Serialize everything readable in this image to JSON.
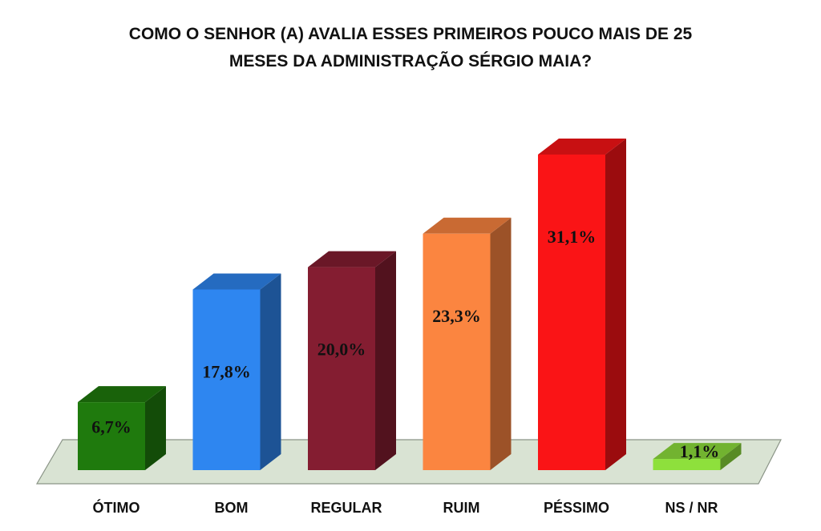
{
  "chart_data": {
    "type": "bar",
    "title": [
      "COMO O SENHOR (A) AVALIA ESSES PRIMEIROS POUCO MAIS DE 25",
      "MESES DA ADMINISTRAÇÃO SÉRGIO MAIA?"
    ],
    "categories": [
      "ÓTIMO",
      "BOM",
      "REGULAR",
      "RUIM",
      "PÉSSIMO",
      "NS / NR"
    ],
    "values": [
      6.7,
      17.8,
      20.0,
      23.3,
      31.1,
      1.1
    ],
    "value_labels": [
      "6,7%",
      "17,8%",
      "20,0%",
      "23,3%",
      "31,1%",
      "1,1%"
    ],
    "unit": "%",
    "colors": [
      "#1f7a0d",
      "#2e86f0",
      "#841d31",
      "#fb8540",
      "#fa1416",
      "#8ee03c"
    ],
    "floor_color": "#d9e3d3",
    "grid": false,
    "legend": "none",
    "style": "3d-columns"
  }
}
